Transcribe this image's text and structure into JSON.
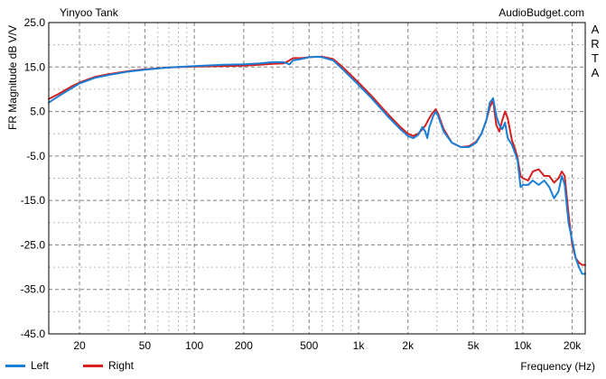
{
  "header": {
    "left_title": "Yinyoo Tank",
    "right_title": "AudioBudget.com",
    "side_text": [
      "A",
      "R",
      "T",
      "A"
    ]
  },
  "chart_data": {
    "type": "line",
    "xlabel": "Frequency (Hz)",
    "ylabel": "FR Magnitude dB V/V",
    "xscale": "log",
    "xlim": [
      13,
      24000
    ],
    "ylim": [
      -45,
      25
    ],
    "yticks": [
      25,
      15,
      5,
      -5,
      -15,
      -25,
      -35,
      -45
    ],
    "ytick_labels": [
      "25.0",
      "15.0",
      "5.0",
      "-5.0",
      "-15.0",
      "-25.0",
      "-35.0",
      "-45.0"
    ],
    "xticks": [
      20,
      50,
      100,
      200,
      500,
      1000,
      2000,
      5000,
      10000,
      20000
    ],
    "xtick_labels": [
      "20",
      "50",
      "100",
      "200",
      "500",
      "1k",
      "2k",
      "5k",
      "10k",
      "20k"
    ],
    "grid": true,
    "legend": "bottom-left",
    "series": [
      {
        "name": "Left",
        "color": "#1a7fd6",
        "points": [
          [
            13,
            7.0
          ],
          [
            15,
            8.5
          ],
          [
            18,
            10.3
          ],
          [
            20,
            11.3
          ],
          [
            25,
            12.6
          ],
          [
            30,
            13.2
          ],
          [
            40,
            14.0
          ],
          [
            50,
            14.4
          ],
          [
            70,
            14.9
          ],
          [
            100,
            15.2
          ],
          [
            150,
            15.5
          ],
          [
            200,
            15.6
          ],
          [
            250,
            15.8
          ],
          [
            300,
            16.1
          ],
          [
            350,
            16.1
          ],
          [
            380,
            15.6
          ],
          [
            400,
            16.5
          ],
          [
            450,
            16.8
          ],
          [
            500,
            17.2
          ],
          [
            560,
            17.3
          ],
          [
            600,
            17.2
          ],
          [
            700,
            16.5
          ],
          [
            800,
            14.5
          ],
          [
            1000,
            11.0
          ],
          [
            1200,
            8.0
          ],
          [
            1500,
            4.0
          ],
          [
            1800,
            1.0
          ],
          [
            2000,
            -0.5
          ],
          [
            2150,
            -1.0
          ],
          [
            2300,
            -0.3
          ],
          [
            2450,
            1.5
          ],
          [
            2550,
            0.5
          ],
          [
            2620,
            -1.0
          ],
          [
            2700,
            1.5
          ],
          [
            2850,
            4.0
          ],
          [
            2950,
            5.0
          ],
          [
            3050,
            4.0
          ],
          [
            3300,
            0.5
          ],
          [
            3700,
            -2.0
          ],
          [
            4200,
            -3.0
          ],
          [
            4700,
            -3.0
          ],
          [
            5200,
            -2.0
          ],
          [
            5600,
            0.0
          ],
          [
            6000,
            3.0
          ],
          [
            6300,
            7.0
          ],
          [
            6600,
            8.0
          ],
          [
            6900,
            4.0
          ],
          [
            7200,
            2.0
          ],
          [
            7500,
            1.0
          ],
          [
            7800,
            2.5
          ],
          [
            8100,
            -1.0
          ],
          [
            8600,
            -2.5
          ],
          [
            9000,
            -4.5
          ],
          [
            9300,
            -6.0
          ],
          [
            9700,
            -12.0
          ],
          [
            10000,
            -11.5
          ],
          [
            10800,
            -11.5
          ],
          [
            11500,
            -10.5
          ],
          [
            12500,
            -11.5
          ],
          [
            13500,
            -10.5
          ],
          [
            14500,
            -12.0
          ],
          [
            15500,
            -14.5
          ],
          [
            16500,
            -13.0
          ],
          [
            17300,
            -9.5
          ],
          [
            18000,
            -11.5
          ],
          [
            19000,
            -20.0
          ],
          [
            20000,
            -24.0
          ],
          [
            21000,
            -28.0
          ],
          [
            22000,
            -30.0
          ],
          [
            23000,
            -31.5
          ],
          [
            24000,
            -31.5
          ]
        ]
      },
      {
        "name": "Right",
        "color": "#d61f1f",
        "points": [
          [
            13,
            7.8
          ],
          [
            15,
            9.0
          ],
          [
            18,
            10.7
          ],
          [
            20,
            11.5
          ],
          [
            25,
            12.8
          ],
          [
            30,
            13.4
          ],
          [
            40,
            14.1
          ],
          [
            50,
            14.5
          ],
          [
            70,
            14.9
          ],
          [
            100,
            15.1
          ],
          [
            150,
            15.2
          ],
          [
            200,
            15.3
          ],
          [
            250,
            15.5
          ],
          [
            300,
            15.7
          ],
          [
            350,
            15.8
          ],
          [
            380,
            16.5
          ],
          [
            400,
            17.0
          ],
          [
            450,
            17.0
          ],
          [
            500,
            17.2
          ],
          [
            560,
            17.3
          ],
          [
            600,
            17.3
          ],
          [
            700,
            16.8
          ],
          [
            800,
            15.0
          ],
          [
            1000,
            11.5
          ],
          [
            1200,
            8.5
          ],
          [
            1500,
            4.5
          ],
          [
            1800,
            1.5
          ],
          [
            2000,
            0.0
          ],
          [
            2150,
            -0.5
          ],
          [
            2300,
            0.0
          ],
          [
            2450,
            1.0
          ],
          [
            2550,
            1.8
          ],
          [
            2650,
            3.0
          ],
          [
            2800,
            4.5
          ],
          [
            2950,
            5.5
          ],
          [
            3050,
            4.5
          ],
          [
            3300,
            1.0
          ],
          [
            3700,
            -2.0
          ],
          [
            4200,
            -3.0
          ],
          [
            4700,
            -2.8
          ],
          [
            5200,
            -1.8
          ],
          [
            5600,
            0.0
          ],
          [
            6000,
            3.0
          ],
          [
            6300,
            6.0
          ],
          [
            6600,
            7.5
          ],
          [
            6900,
            2.0
          ],
          [
            7200,
            0.5
          ],
          [
            7500,
            3.0
          ],
          [
            7800,
            5.0
          ],
          [
            8100,
            3.5
          ],
          [
            8600,
            -1.5
          ],
          [
            9000,
            -3.5
          ],
          [
            9300,
            -5.5
          ],
          [
            9700,
            -9.5
          ],
          [
            10000,
            -10.0
          ],
          [
            10800,
            -10.5
          ],
          [
            11500,
            -8.5
          ],
          [
            12500,
            -8.0
          ],
          [
            13500,
            -9.5
          ],
          [
            14500,
            -9.5
          ],
          [
            15500,
            -11.0
          ],
          [
            16500,
            -10.0
          ],
          [
            17300,
            -8.5
          ],
          [
            18000,
            -9.5
          ],
          [
            19000,
            -18.0
          ],
          [
            20000,
            -25.0
          ],
          [
            21000,
            -28.0
          ],
          [
            22000,
            -29.0
          ],
          [
            23000,
            -29.5
          ],
          [
            24000,
            -29.5
          ]
        ]
      }
    ]
  }
}
